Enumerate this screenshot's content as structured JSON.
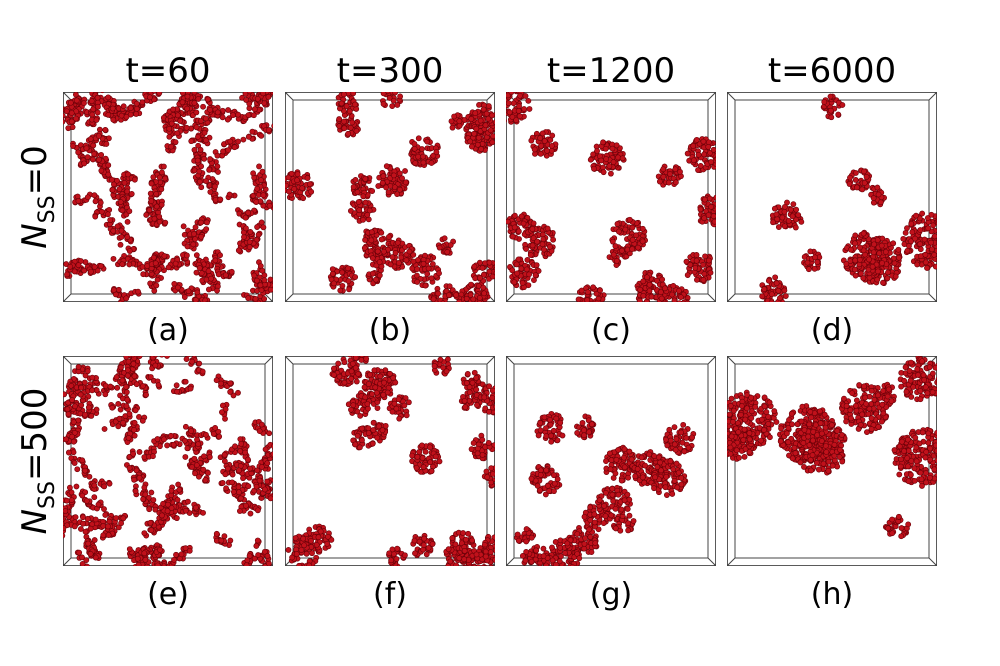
{
  "columns": [
    "t=60",
    "t=300",
    "t=1200",
    "t=6000"
  ],
  "rows": [
    {
      "symbol": "N",
      "subscript": "SS",
      "rest": "=0",
      "panels": [
        "(a)",
        "(b)",
        "(c)",
        "(d)"
      ]
    },
    {
      "symbol": "N",
      "subscript": "SS",
      "rest": "=500",
      "panels": [
        "(e)",
        "(f)",
        "(g)",
        "(h)"
      ]
    }
  ]
}
